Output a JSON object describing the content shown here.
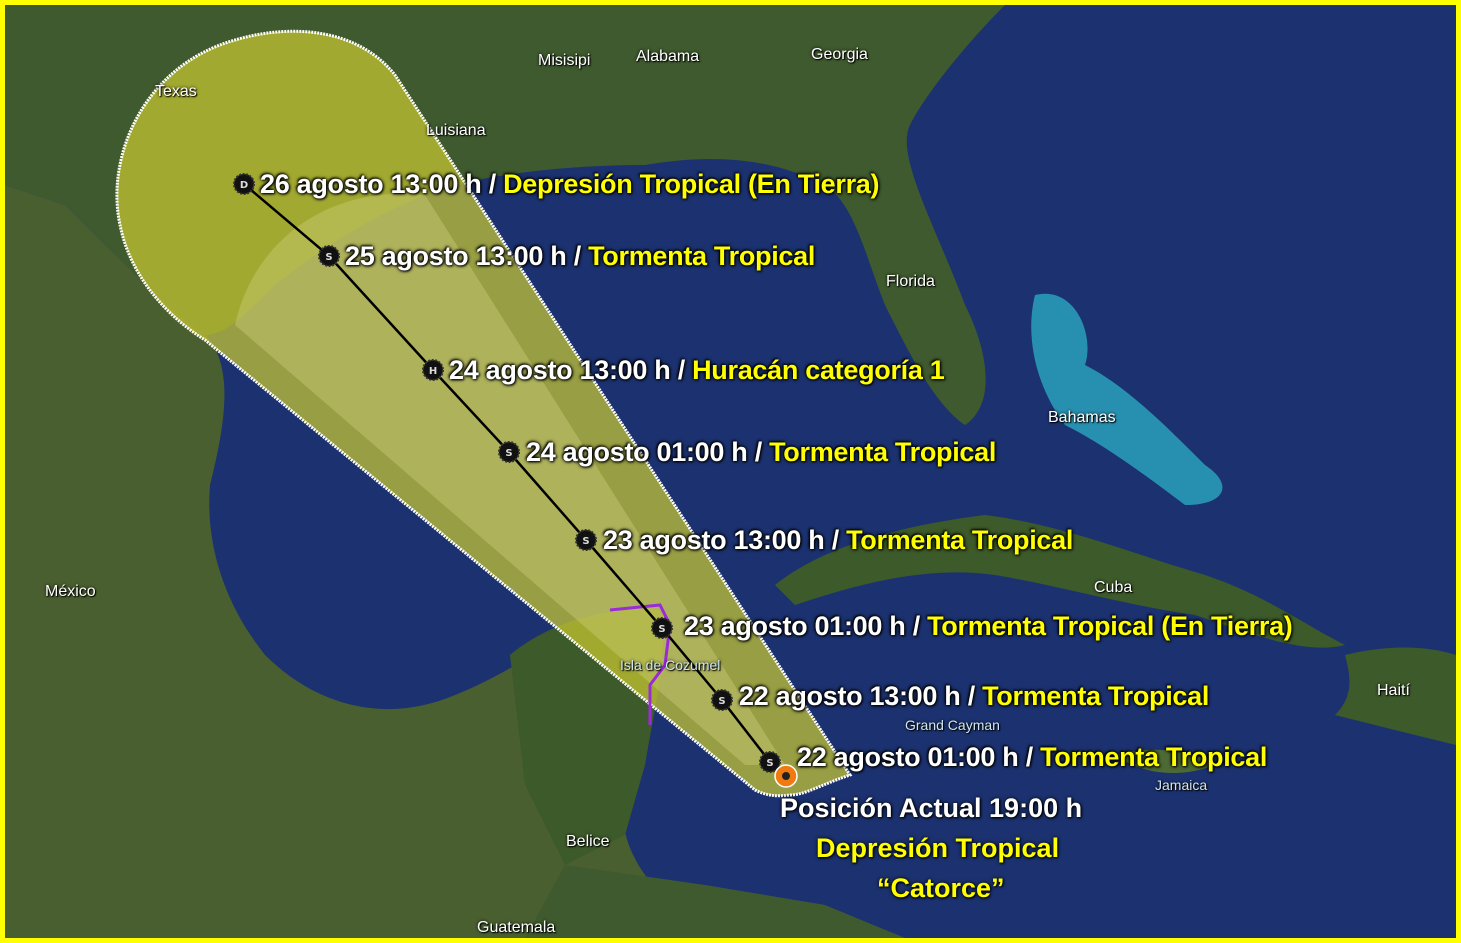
{
  "map": {
    "colors": {
      "frame": "#ffff00",
      "ocean": "#1c3270",
      "land": "#3f5a2e",
      "cone": "#c9c832",
      "track": "#000000",
      "current_position": "#f07a10",
      "label_time": "#ffffff",
      "label_intensity": "#ffff00"
    },
    "geo_labels": [
      "Texas",
      "Misisipi",
      "Alabama",
      "Georgia",
      "Luisiana",
      "Florida",
      "Bahamas",
      "Cuba",
      "México",
      "Isla de Cozumel",
      "Grand Cayman",
      "Haití",
      "Jamaica",
      "Belice",
      "Guatemala"
    ],
    "forecast_points": [
      {
        "icon": "D",
        "time": "26 agosto 13:00 h",
        "sep": " / ",
        "intensity": "Depresión Tropical (En Tierra)"
      },
      {
        "icon": "S",
        "time": "25 agosto 13:00 h",
        "sep": " / ",
        "intensity": "Tormenta Tropical"
      },
      {
        "icon": "H",
        "time": "24 agosto 13:00 h",
        "sep": " / ",
        "intensity": "Huracán categoría 1"
      },
      {
        "icon": "S",
        "time": "24 agosto 01:00 h",
        "sep": " / ",
        "intensity": "Tormenta Tropical"
      },
      {
        "icon": "S",
        "time": "23 agosto 13:00 h",
        "sep": " / ",
        "intensity": "Tormenta Tropical"
      },
      {
        "icon": "S",
        "time": "23 agosto 01:00 h",
        "sep": " / ",
        "intensity": "Tormenta Tropical (En Tierra)"
      },
      {
        "icon": "S",
        "time": "22 agosto 13:00 h",
        "sep": " / ",
        "intensity": "Tormenta Tropical"
      },
      {
        "icon": "S",
        "time": "22 agosto 01:00 h",
        "sep": " / ",
        "intensity": "Tormenta Tropical"
      }
    ],
    "current": {
      "position_label": "Posición Actual  19:00 h",
      "status": "Depresión Tropical",
      "name": "“Catorce”"
    }
  }
}
